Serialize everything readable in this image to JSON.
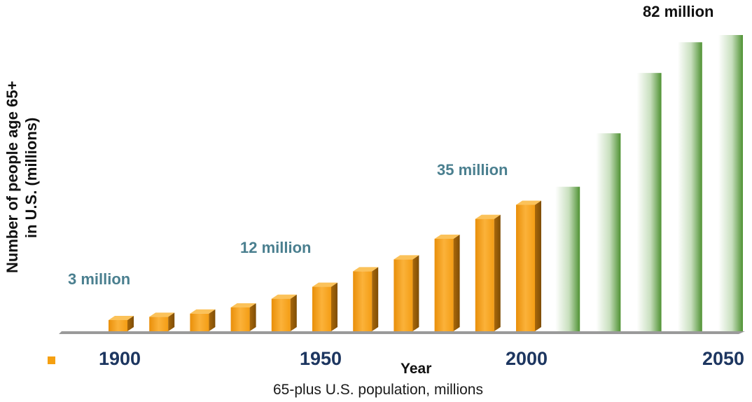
{
  "chart_data": {
    "type": "bar",
    "title": "",
    "ylabel_line1": "Number of people age 65+",
    "ylabel_line2": "in U.S. (millions)",
    "xlabel": "Year",
    "x_tick_labels": [
      "1900",
      "1950",
      "2000",
      "2050"
    ],
    "categories": [
      "1900",
      "1910",
      "1920",
      "1930",
      "1940",
      "1950",
      "1960",
      "1970",
      "1980",
      "1990",
      "2000",
      "2010",
      "2020",
      "2030",
      "2040",
      "2050"
    ],
    "series": [
      {
        "name": "65-plus U.S. population, millions",
        "color": "#f5a011",
        "values": [
          3.1,
          4.0,
          4.9,
          6.6,
          9.0,
          12.3,
          16.6,
          19.9,
          25.6,
          31.1,
          35.0,
          null,
          null,
          null,
          null,
          null
        ]
      },
      {
        "color": "#5a9a3a",
        "values": [
          null,
          null,
          null,
          null,
          null,
          null,
          null,
          null,
          null,
          null,
          null,
          40.0,
          54.8,
          71.5,
          80.0,
          82.0
        ]
      }
    ],
    "annotations": [
      {
        "text": "3 million",
        "category": "1900"
      },
      {
        "text": "12 million",
        "category": "1950"
      },
      {
        "text": "35 million",
        "category": "2000"
      },
      {
        "text": "82 million",
        "category": "2050"
      }
    ],
    "legend": {
      "position": "bottom-left",
      "label": "65-plus U.S. population, millions"
    },
    "ylim": [
      0,
      82
    ],
    "grid": false,
    "colors": {
      "historical": "#f5a011",
      "historical_dark": "#b0700a",
      "projected": "#5a9a3a",
      "annotation": "#4a7f8f",
      "tick": "#1d3660",
      "axis": "#8c8c8c"
    }
  }
}
